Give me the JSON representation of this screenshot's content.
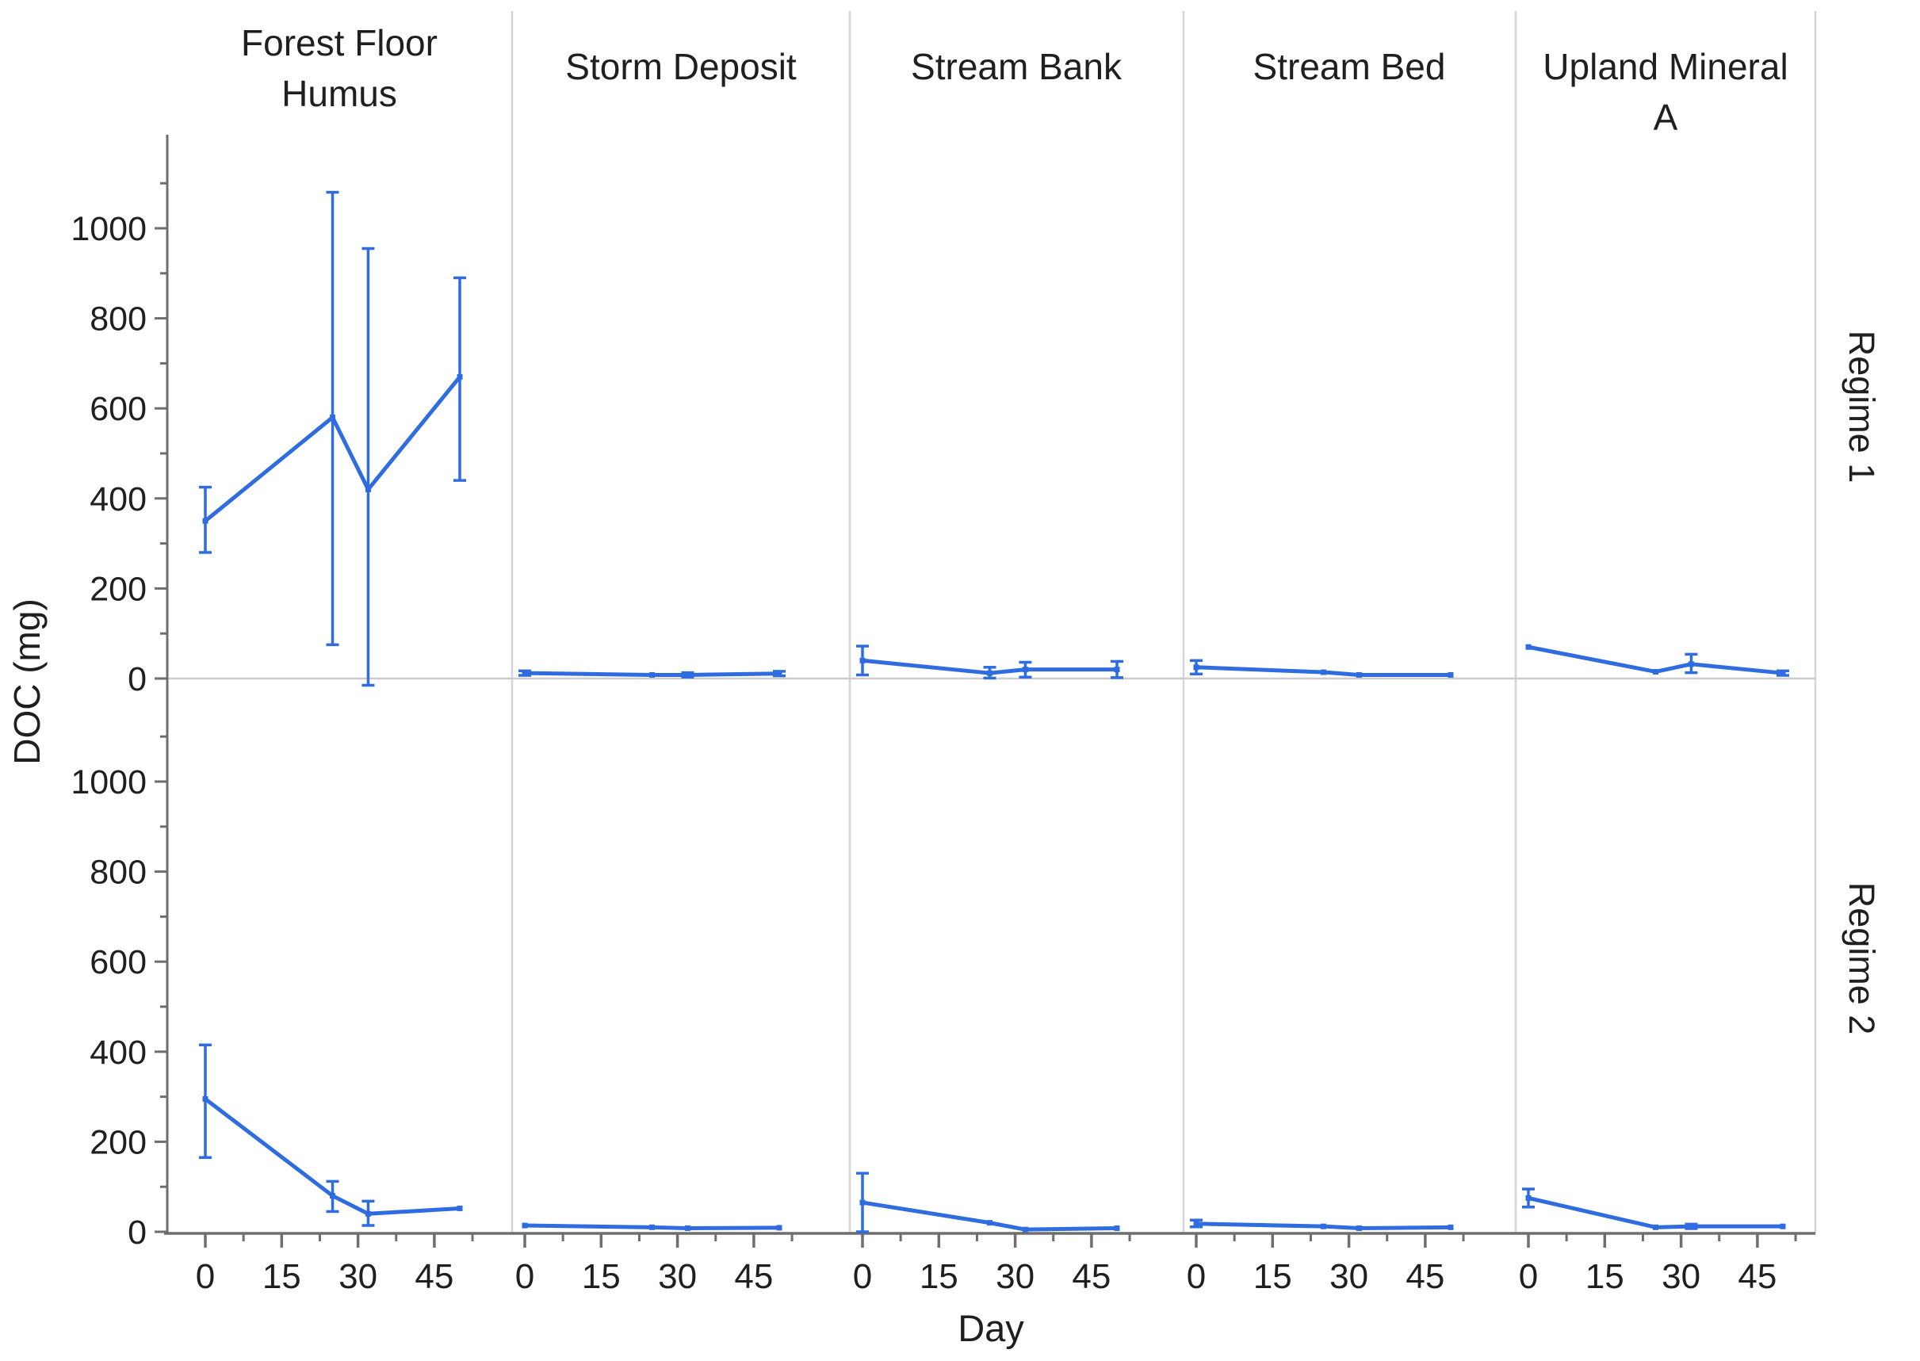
{
  "figure": {
    "y_axis_title": "DOC (mg)",
    "x_axis_title": "Day",
    "row_labels": [
      "Regime 1",
      "Regime 2"
    ],
    "col_labels": [
      "Forest Floor Humus",
      "Storm Deposit",
      "Stream Bank",
      "Stream Bed",
      "Upland Mineral A"
    ]
  },
  "chart_data": {
    "type": "line",
    "layout_hint": "faceted small multiples: 2 regime rows x 5 site columns, shared axes, error bars, no grid, legend none",
    "xlabel": "Day",
    "ylabel": "DOC (mg)",
    "x_major_ticks": [
      0,
      15,
      30,
      45
    ],
    "x_minor_ticks": [
      7.5,
      22.5,
      37.5,
      52.5
    ],
    "y_major_ticks": [
      0,
      200,
      400,
      600,
      800,
      1000
    ],
    "y_minor_step": 100,
    "y_minor_max": 1100,
    "ylim": [
      0,
      1200
    ],
    "xlim": [
      -7,
      60
    ],
    "days": [
      0,
      25,
      32,
      50
    ],
    "line_color": "#2f6ce0",
    "axis_color": "#6e6e6e",
    "separator_color": "#d6d6d6",
    "zero_line_color": "#cccccc",
    "text_color": "#1f1f1f",
    "panels": [
      {
        "regime": "Regime 1",
        "site": "Forest Floor Humus",
        "values": [
          350,
          580,
          420,
          670
        ],
        "err_low": [
          280,
          75,
          -15,
          440
        ],
        "err_high": [
          425,
          1080,
          955,
          890
        ]
      },
      {
        "regime": "Regime 1",
        "site": "Storm Deposit",
        "values": [
          12,
          8,
          8,
          11
        ],
        "err_low": [
          7,
          8,
          3,
          6
        ],
        "err_high": [
          17,
          8,
          13,
          16
        ]
      },
      {
        "regime": "Regime 1",
        "site": "Stream Bank",
        "values": [
          40,
          12,
          20,
          20
        ],
        "err_low": [
          8,
          1,
          3,
          2
        ],
        "err_high": [
          72,
          25,
          36,
          38
        ]
      },
      {
        "regime": "Regime 1",
        "site": "Stream Bed",
        "values": [
          25,
          14,
          8,
          8
        ],
        "err_low": [
          10,
          14,
          8,
          8
        ],
        "err_high": [
          40,
          14,
          8,
          8
        ]
      },
      {
        "regime": "Regime 1",
        "site": "Upland Mineral A",
        "values": [
          70,
          15,
          32,
          12
        ],
        "err_low": [
          70,
          15,
          13,
          7
        ],
        "err_high": [
          70,
          15,
          54,
          17
        ]
      },
      {
        "regime": "Regime 2",
        "site": "Forest Floor Humus",
        "values": [
          295,
          80,
          40,
          52
        ],
        "err_low": [
          165,
          45,
          14,
          52
        ],
        "err_high": [
          415,
          112,
          68,
          52
        ]
      },
      {
        "regime": "Regime 2",
        "site": "Storm Deposit",
        "values": [
          14,
          10,
          8,
          9
        ],
        "err_low": [
          14,
          10,
          8,
          9
        ],
        "err_high": [
          14,
          10,
          8,
          9
        ]
      },
      {
        "regime": "Regime 2",
        "site": "Stream Bank",
        "values": [
          65,
          20,
          5,
          8
        ],
        "err_low": [
          0,
          20,
          5,
          8
        ],
        "err_high": [
          130,
          20,
          5,
          8
        ]
      },
      {
        "regime": "Regime 2",
        "site": "Stream Bed",
        "values": [
          18,
          12,
          8,
          10
        ],
        "err_low": [
          11,
          12,
          8,
          10
        ],
        "err_high": [
          26,
          12,
          8,
          10
        ]
      },
      {
        "regime": "Regime 2",
        "site": "Upland Mineral A",
        "values": [
          75,
          10,
          12,
          12
        ],
        "err_low": [
          55,
          10,
          7,
          12
        ],
        "err_high": [
          95,
          10,
          17,
          12
        ]
      }
    ]
  }
}
